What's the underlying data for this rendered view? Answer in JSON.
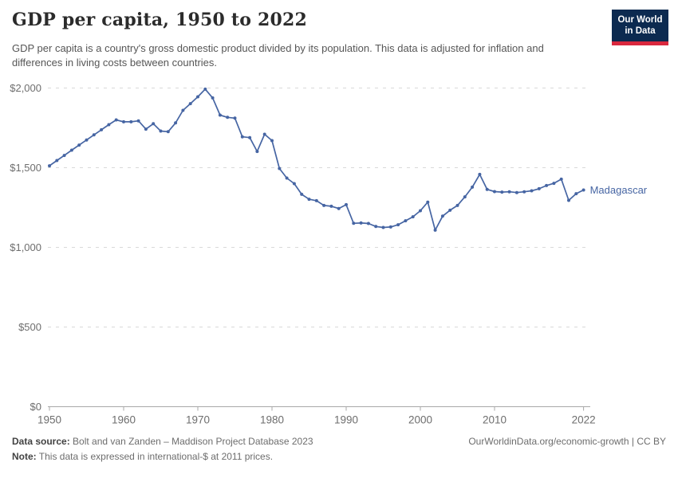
{
  "header": {
    "title": "GDP per capita, 1950 to 2022",
    "subtitle": "GDP per capita is a country's gross domestic product divided by its population. This data is adjusted for inflation and differences in living costs between countries.",
    "logo": {
      "line1": "Our World",
      "line2": "in Data"
    }
  },
  "colors": {
    "line": "#4665a3",
    "logo_bg": "#0c2a50",
    "logo_red": "#d9283e"
  },
  "chart_data": {
    "type": "line",
    "title": "GDP per capita, 1950 to 2022",
    "entity_label": "Madagascar",
    "unit": "international-$ at 2011 prices",
    "xlim": [
      1950,
      2022
    ],
    "ylim": [
      0,
      2000
    ],
    "grid": "horizontal-dashed",
    "legend": "end-of-line-label",
    "x": [
      1950,
      1951,
      1952,
      1953,
      1954,
      1955,
      1956,
      1957,
      1958,
      1959,
      1960,
      1961,
      1962,
      1963,
      1964,
      1965,
      1966,
      1967,
      1968,
      1969,
      1970,
      1971,
      1972,
      1973,
      1974,
      1975,
      1976,
      1977,
      1978,
      1979,
      1980,
      1981,
      1982,
      1983,
      1984,
      1985,
      1986,
      1987,
      1988,
      1989,
      1990,
      1991,
      1992,
      1993,
      1994,
      1995,
      1996,
      1997,
      1998,
      1999,
      2000,
      2001,
      2002,
      2003,
      2004,
      2005,
      2006,
      2007,
      2008,
      2009,
      2010,
      2011,
      2012,
      2013,
      2014,
      2015,
      2016,
      2017,
      2018,
      2019,
      2020,
      2021,
      2022
    ],
    "values": [
      1512,
      1545,
      1577,
      1610,
      1642,
      1674,
      1706,
      1738,
      1770,
      1800,
      1788,
      1788,
      1794,
      1742,
      1776,
      1730,
      1726,
      1781,
      1860,
      1902,
      1945,
      1993,
      1938,
      1830,
      1816,
      1811,
      1694,
      1689,
      1602,
      1710,
      1670,
      1495,
      1435,
      1400,
      1333,
      1302,
      1293,
      1263,
      1258,
      1244,
      1268,
      1151,
      1153,
      1150,
      1131,
      1125,
      1128,
      1142,
      1167,
      1192,
      1230,
      1284,
      1108,
      1196,
      1233,
      1263,
      1317,
      1378,
      1458,
      1364,
      1350,
      1347,
      1349,
      1344,
      1349,
      1355,
      1368,
      1388,
      1402,
      1428,
      1295,
      1337,
      1360
    ],
    "xticks": [
      1950,
      1960,
      1970,
      1980,
      1990,
      2000,
      2010,
      2022
    ],
    "xtick_labels": [
      "1950",
      "1960",
      "1970",
      "1980",
      "1990",
      "2000",
      "2010",
      "2022"
    ],
    "yticks": [
      0,
      500,
      1000,
      1500,
      2000
    ],
    "ytick_labels": [
      "$0",
      "$500",
      "$1,000",
      "$1,500",
      "$2,000"
    ]
  },
  "footer": {
    "source_label": "Data source:",
    "source_text": " Bolt and van Zanden – Maddison Project Database 2023",
    "right_text": "OurWorldinData.org/economic-growth | CC BY",
    "note_label": "Note:",
    "note_text": " This data is expressed in international-$ at 2011 prices."
  }
}
